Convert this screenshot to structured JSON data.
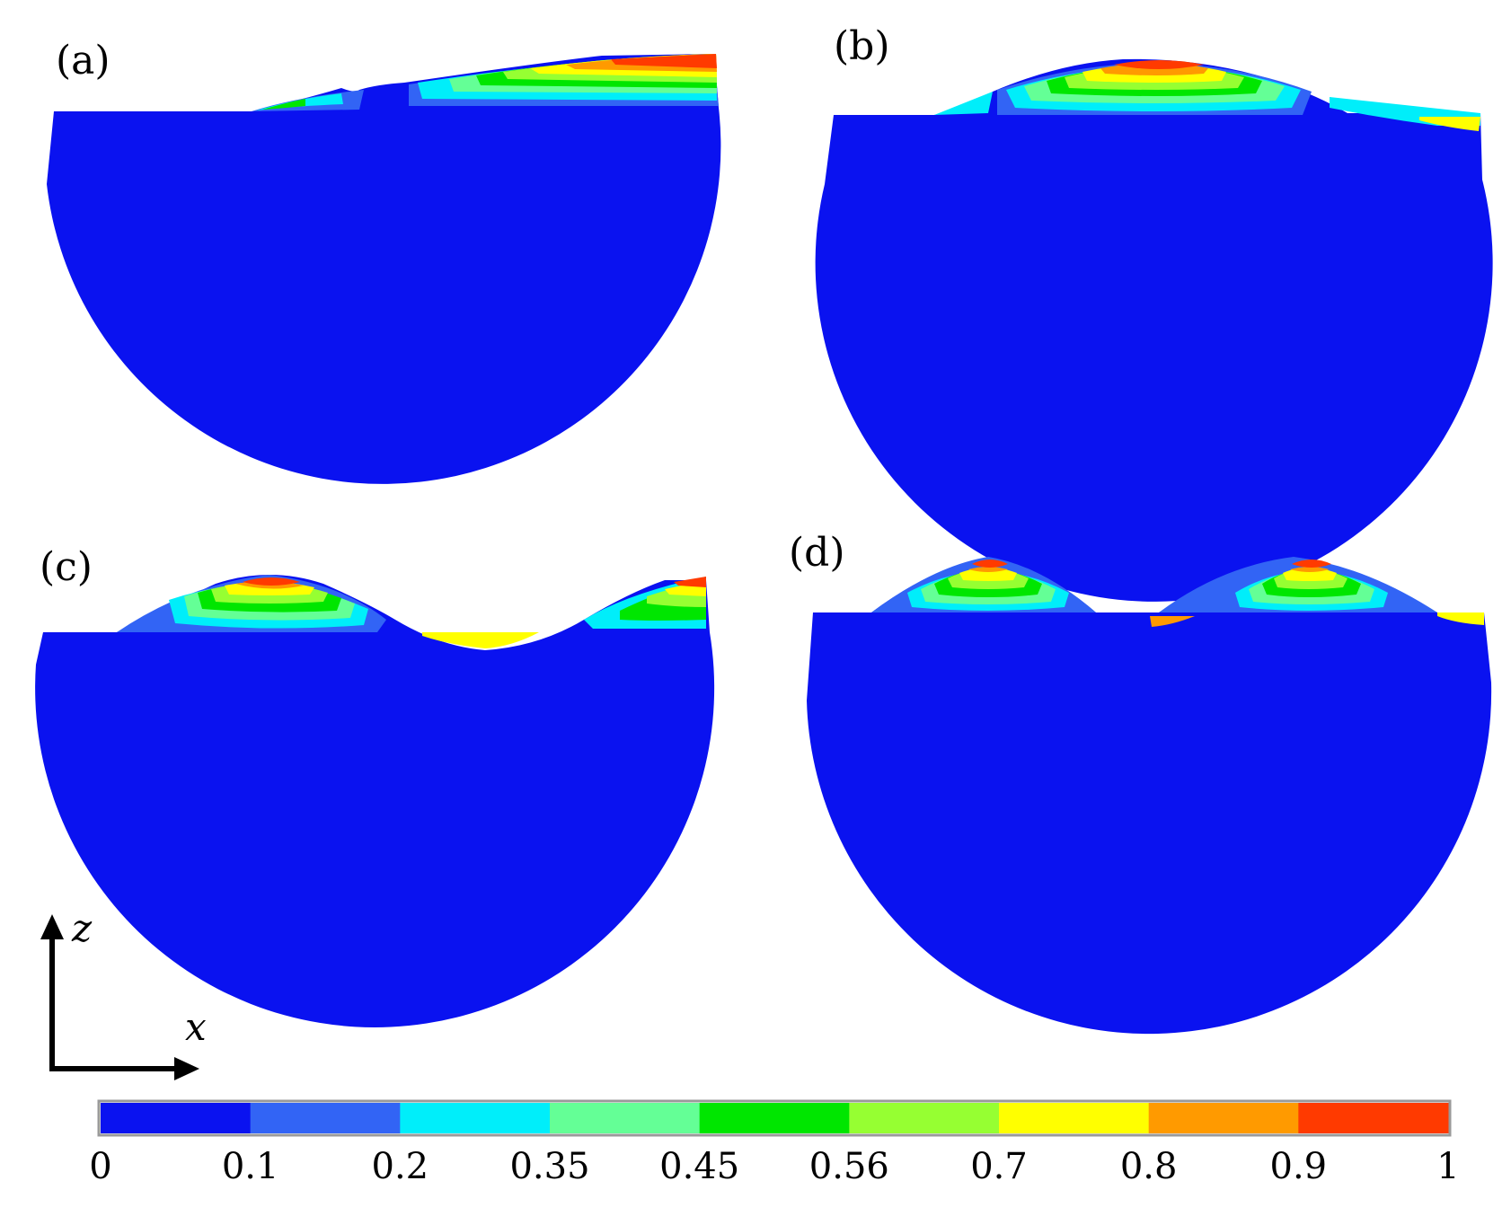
{
  "panels": [
    {
      "label": "(a)"
    },
    {
      "label": "(b)"
    },
    {
      "label": "(c)"
    },
    {
      "label": "(d)"
    }
  ],
  "axes": {
    "vertical_label": "z",
    "horizontal_label": "x"
  },
  "colorbar": {
    "ticks": [
      "0",
      "0.1",
      "0.2",
      "0.35",
      "0.45",
      "0.56",
      "0.7",
      "0.8",
      "0.9",
      "1"
    ],
    "colors": [
      "#0a12f0",
      "#3264f5",
      "#00eefa",
      "#64ff96",
      "#00e600",
      "#96ff32",
      "#ffff00",
      "#ff9a00",
      "#ff3a00"
    ]
  },
  "colors": {
    "background": "#0a12f0",
    "arrow": "#000000"
  }
}
